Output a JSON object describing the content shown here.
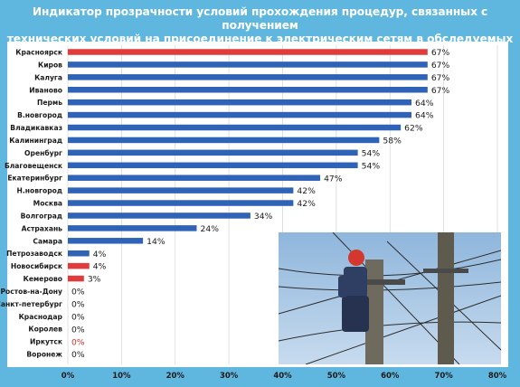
{
  "title": {
    "line1": "Индикатор прозрачности условий прохождения процедур, связанных с получением",
    "line2": "технических условий на присоединение к электрическим сетям в обследуемых городах"
  },
  "colors": {
    "background": "#5fb7df",
    "bar_default": "#2f63b8",
    "bar_highlight": "#e23b3b",
    "label_highlight": "#d92c2c"
  },
  "chart_data": {
    "type": "bar",
    "orientation": "horizontal",
    "title": "Индикатор прозрачности условий прохождения процедур, связанных с получением технических условий на присоединение к электрическим сетям в обследуемых городах",
    "categories": [
      "Красноярск",
      "Киров",
      "Калуга",
      "Иваново",
      "Пермь",
      "В.новгород",
      "Владикавказ",
      "Калининград",
      "Оренбург",
      "Благовещенск",
      "Екатеринбург",
      "Н.новгород",
      "Москва",
      "Волгоград",
      "Астрахань",
      "Самара",
      "Петрозаводск",
      "Новосибирск",
      "Кемерово",
      "Ростов-на-Дону",
      "Санкт-петербург",
      "Краснодар",
      "Королев",
      "Иркутск",
      "Воронеж"
    ],
    "values": [
      67,
      67,
      67,
      67,
      64,
      64,
      62,
      58,
      54,
      54,
      47,
      42,
      42,
      34,
      24,
      14,
      4,
      4,
      3,
      0,
      0,
      0,
      0,
      0,
      0
    ],
    "value_labels": [
      "67%",
      "67%",
      "67%",
      "67%",
      "64%",
      "64%",
      "62%",
      "58%",
      "54%",
      "54%",
      "47%",
      "42%",
      "42%",
      "34%",
      "24%",
      "14%",
      "4%",
      "4%",
      "3%",
      "0%",
      "0%",
      "0%",
      "0%",
      "0%",
      "0%"
    ],
    "highlighted": [
      "Красноярск",
      "Новосибирск",
      "Кемерово",
      "Иркутск"
    ],
    "xlim": [
      0,
      80
    ],
    "xticks": [
      0,
      10,
      20,
      30,
      40,
      50,
      60,
      70,
      80
    ],
    "xtick_labels": [
      "0%",
      "10%",
      "20%",
      "30%",
      "40%",
      "50%",
      "60%",
      "70%",
      "80%"
    ],
    "grid": true,
    "legend": false
  },
  "photo": {
    "icon": "lineman-on-power-pole-photo"
  }
}
